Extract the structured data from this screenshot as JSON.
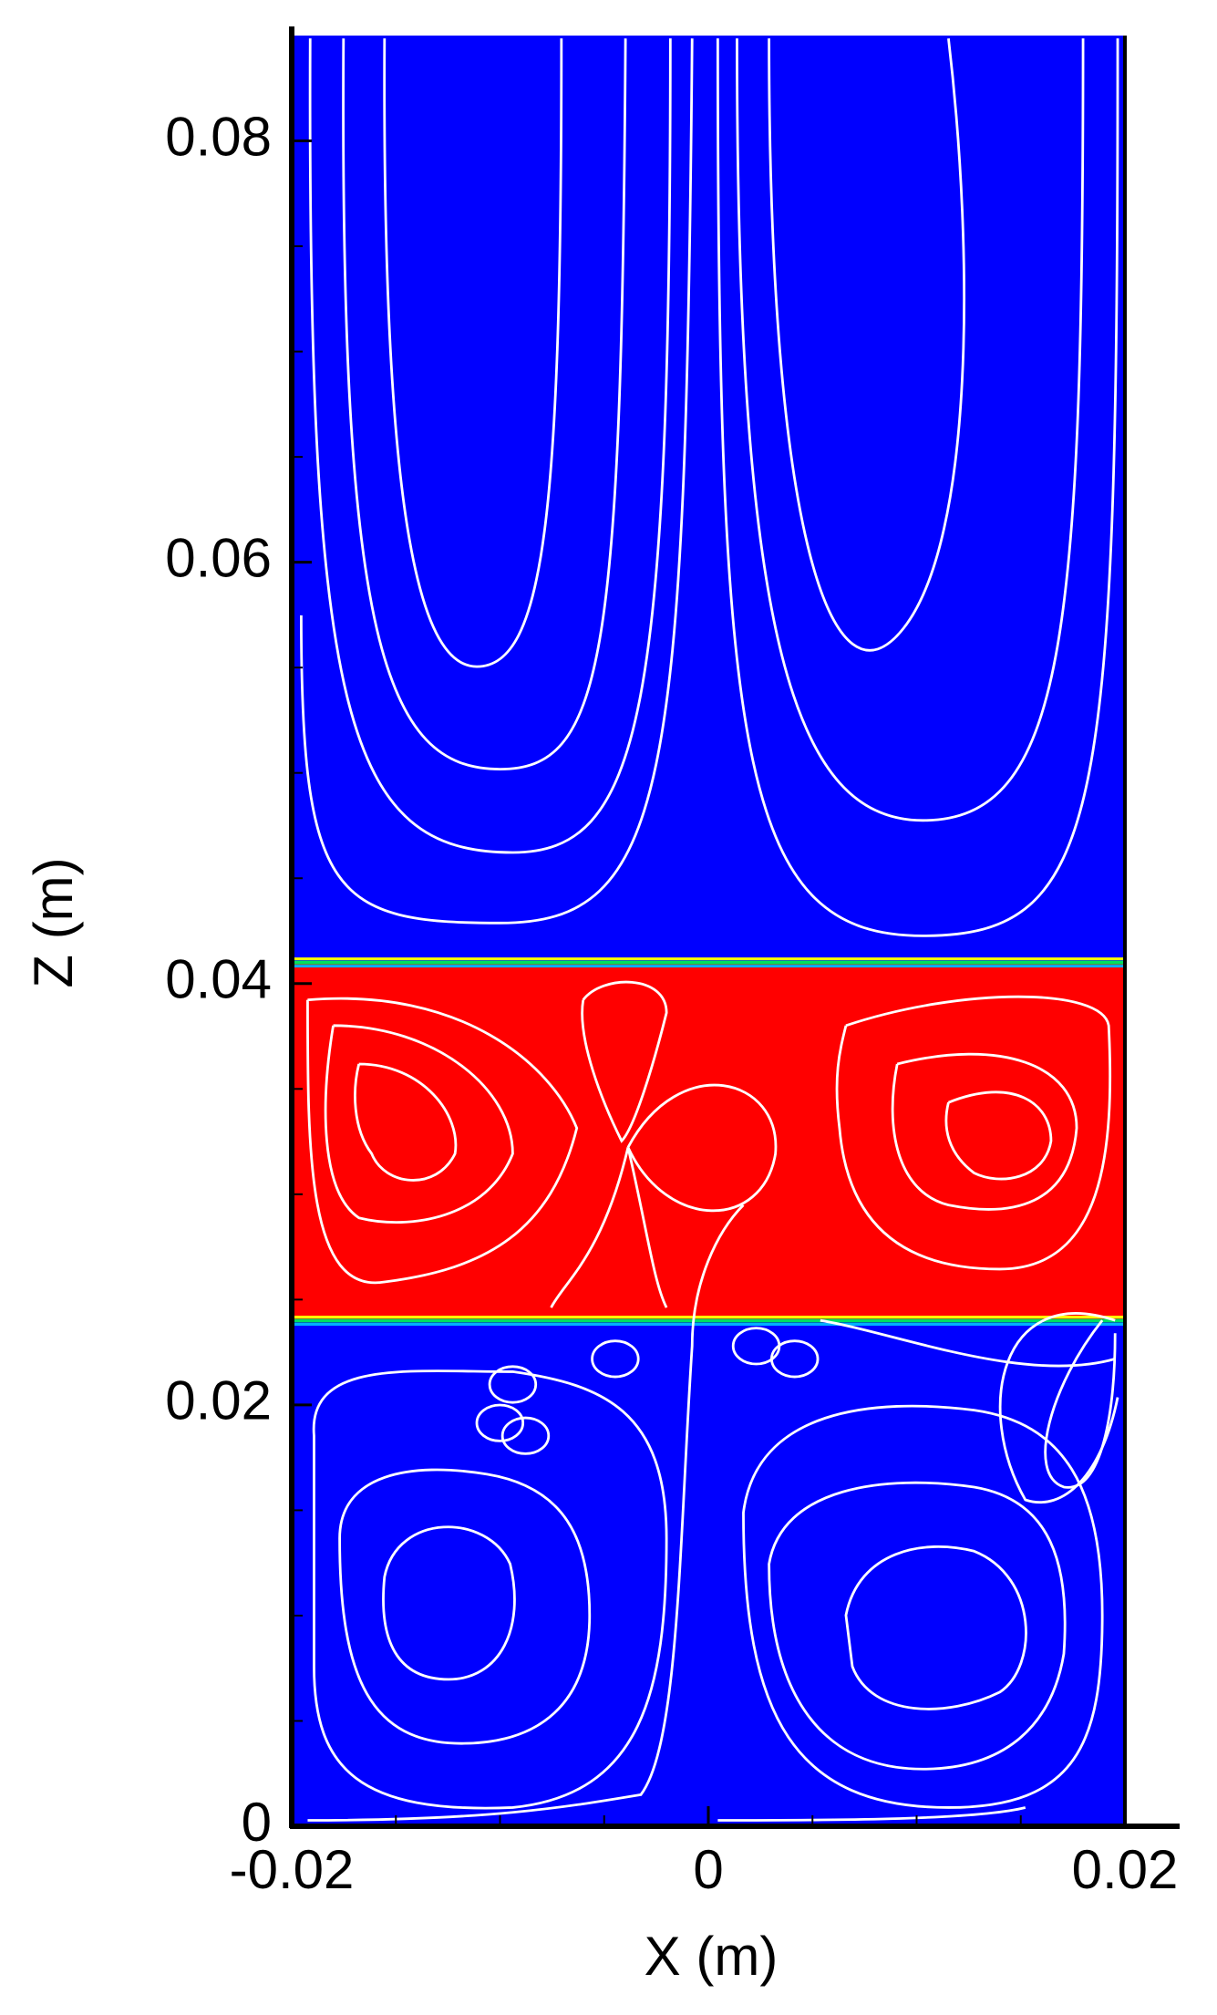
{
  "chart_data": {
    "type": "contour",
    "xlabel": "X (m)",
    "ylabel": "Z (m)",
    "xlim": [
      -0.02,
      0.02
    ],
    "ylim": [
      0,
      0.085
    ],
    "xticks": [
      -0.02,
      0,
      0.02
    ],
    "yticks": [
      0,
      0.02,
      0.04,
      0.06,
      0.08
    ],
    "xticks_minor": [
      -0.015,
      -0.01,
      -0.005,
      0.005,
      0.01,
      0.015
    ],
    "yticks_minor": [
      0.005,
      0.01,
      0.015,
      0.025,
      0.03,
      0.035,
      0.045,
      0.05,
      0.055,
      0.065,
      0.07,
      0.075
    ],
    "regions": [
      {
        "color": "#0000ff",
        "zlim": [
          0,
          0.085
        ]
      },
      {
        "color": "#ff0000",
        "zlim": [
          0.024,
          0.041
        ]
      }
    ],
    "streamline_color": "#ffffff"
  }
}
